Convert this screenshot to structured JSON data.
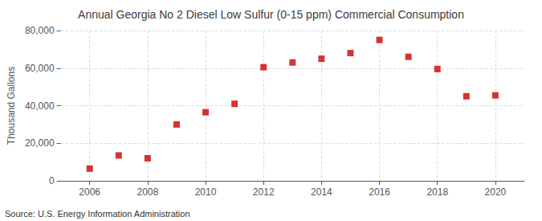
{
  "chart_data": {
    "type": "scatter",
    "title": "Annual Georgia No 2 Diesel Low Sulfur (0-15 ppm) Commercial Consumption",
    "ylabel": "Thousand Gallons",
    "annotations": [
      "Source: U.S. Energy Information Administration"
    ],
    "x": [
      2006,
      2007,
      2008,
      2009,
      2010,
      2011,
      2012,
      2013,
      2014,
      2015,
      2016,
      2017,
      2018,
      2019,
      2020
    ],
    "values": [
      6500,
      13500,
      12000,
      30000,
      36500,
      41000,
      60500,
      63000,
      65000,
      68000,
      75000,
      66000,
      59500,
      45000,
      45500
    ],
    "color": "#cc0000",
    "marker": "square",
    "xlim": [
      2005,
      2021
    ],
    "xticks": [
      2006,
      2008,
      2010,
      2012,
      2014,
      2016,
      2018,
      2020
    ],
    "ylim": [
      0,
      80000
    ],
    "yticks": [
      0,
      {
        "value": 20000,
        "label": "20,000"
      },
      {
        "value": 40000,
        "label": "40,000"
      },
      {
        "value": 60000,
        "label": "60,000"
      },
      {
        "value": 80000,
        "label": "80,000"
      }
    ],
    "grid": true
  }
}
